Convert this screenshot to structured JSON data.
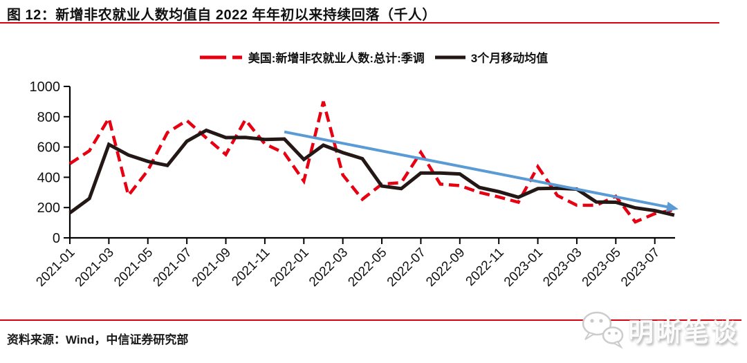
{
  "title": {
    "text": "图 12：新增非农就业人数均值自 2022 年年初以来持续回落（千人）"
  },
  "footer": {
    "source": "资料来源：Wind，中信证券研究部"
  },
  "watermark": {
    "name": "明晰笔谈",
    "icon": "wechat-icon"
  },
  "colors": {
    "accent_red": "#e60012",
    "rule_red": "#d7000f",
    "line_black": "#231815",
    "trend_blue": "#5b9bd5",
    "axis": "#000000"
  },
  "chart_data": {
    "type": "line",
    "title": "新增非农就业人数均值自 2022 年年初以来持续回落（千人）",
    "xlabel": "",
    "ylabel": "",
    "ylim": [
      0,
      1000
    ],
    "y_ticks": [
      0,
      200,
      400,
      600,
      800,
      1000
    ],
    "grid": false,
    "legend_position": "top-center",
    "x": [
      "2021-01",
      "2021-02",
      "2021-03",
      "2021-04",
      "2021-05",
      "2021-06",
      "2021-07",
      "2021-08",
      "2021-09",
      "2021-10",
      "2021-11",
      "2021-12",
      "2022-01",
      "2022-02",
      "2022-03",
      "2022-04",
      "2022-05",
      "2022-06",
      "2022-07",
      "2022-08",
      "2022-09",
      "2022-10",
      "2022-11",
      "2022-12",
      "2023-01",
      "2023-02",
      "2023-03",
      "2023-04",
      "2023-05",
      "2023-06",
      "2023-07",
      "2023-08"
    ],
    "x_tick_labels": [
      "2021-01",
      "2021-03",
      "2021-05",
      "2021-07",
      "2021-09",
      "2021-11",
      "2022-01",
      "2022-03",
      "2022-05",
      "2022-07",
      "2022-09",
      "2022-11",
      "2023-01",
      "2023-03",
      "2023-05",
      "2023-07"
    ],
    "series": [
      {
        "name": "美国:新增非农就业人数:总计:季调",
        "style": "dashed",
        "color": "#e60012",
        "values": [
          490,
          575,
          790,
          280,
          445,
          695,
          775,
          660,
          550,
          780,
          620,
          560,
          375,
          900,
          415,
          255,
          355,
          365,
          565,
          355,
          345,
          300,
          270,
          235,
          470,
          280,
          215,
          215,
          275,
          105,
          160,
          185
        ]
      },
      {
        "name": "3个月移动均值",
        "style": "solid",
        "color": "#231815",
        "values": [
          165,
          260,
          617,
          547,
          505,
          478,
          638,
          710,
          662,
          663,
          650,
          653,
          518,
          612,
          563,
          523,
          342,
          325,
          428,
          428,
          422,
          333,
          305,
          268,
          325,
          328,
          322,
          237,
          235,
          198,
          180,
          150
        ]
      }
    ],
    "trend_arrow": {
      "color": "#5b9bd5",
      "start": {
        "month": "2021-12",
        "value": 700
      },
      "end": {
        "month": "2023-08",
        "value": 190
      }
    }
  }
}
